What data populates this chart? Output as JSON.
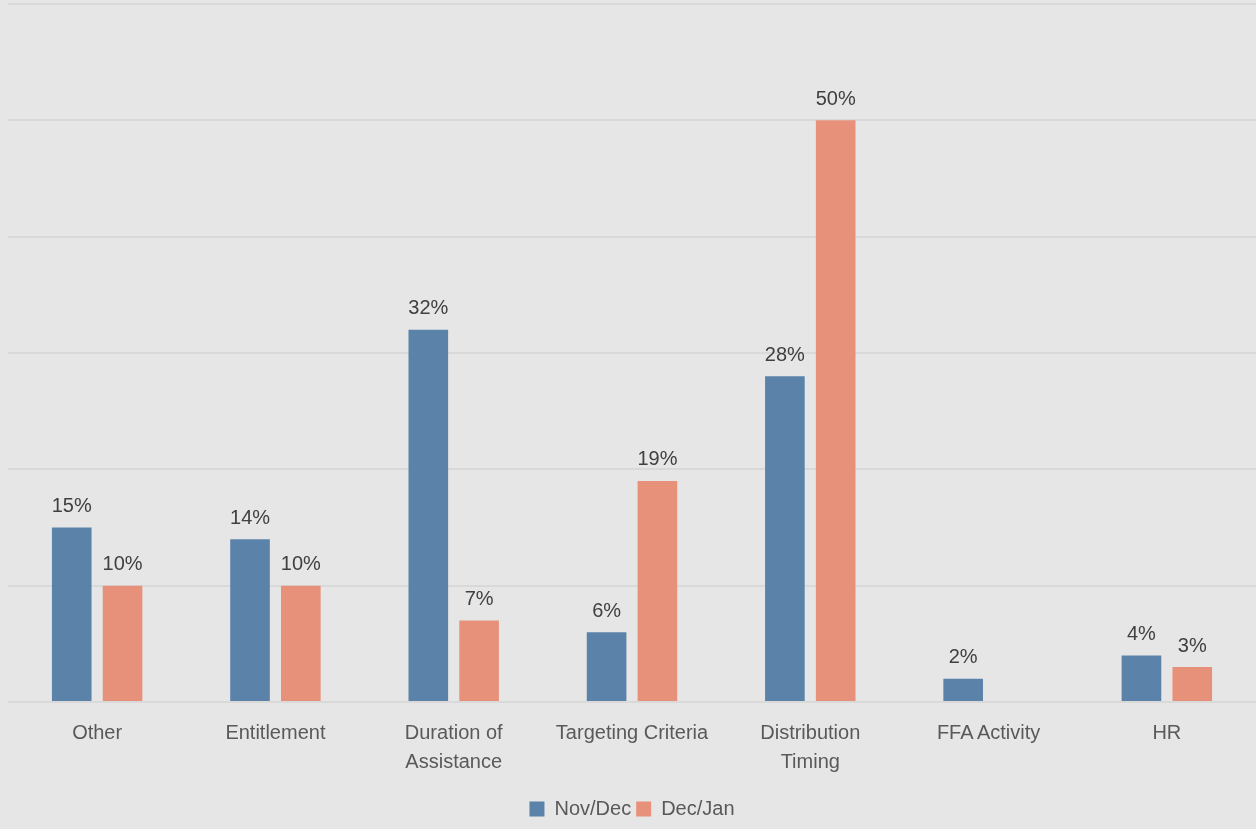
{
  "chart_data": {
    "type": "bar",
    "categories": [
      "Other",
      "Entitlement",
      "Duration of Assistance",
      "Targeting Criteria",
      "Distribution Timing",
      "FFA Activity",
      "HR"
    ],
    "series": [
      {
        "name": "Nov/Dec",
        "color": "#5b83aa",
        "values": [
          15,
          14,
          32,
          6,
          28,
          2,
          4
        ],
        "value_labels": [
          "15%",
          "14%",
          "32%",
          "6%",
          "28%",
          "2%",
          "4%"
        ]
      },
      {
        "name": "Dec/Jan",
        "color": "#e8917a",
        "values": [
          10,
          10,
          7,
          19,
          50,
          null,
          3
        ],
        "value_labels": [
          "10%",
          "10%",
          "7%",
          "19%",
          "50%",
          null,
          "3%"
        ]
      }
    ],
    "ylim": [
      0,
      60
    ],
    "yticks": [
      {
        "value": 0,
        "label": null
      },
      {
        "value": 10,
        "label": null
      },
      {
        "value": 20,
        "label": null
      },
      {
        "value": 30,
        "label": null
      },
      {
        "value": 40,
        "label": null
      },
      {
        "value": 50,
        "label": null
      },
      {
        "value": 60,
        "label": null
      }
    ],
    "grid": "y",
    "legend": "bottom",
    "tick_labels": "x"
  }
}
